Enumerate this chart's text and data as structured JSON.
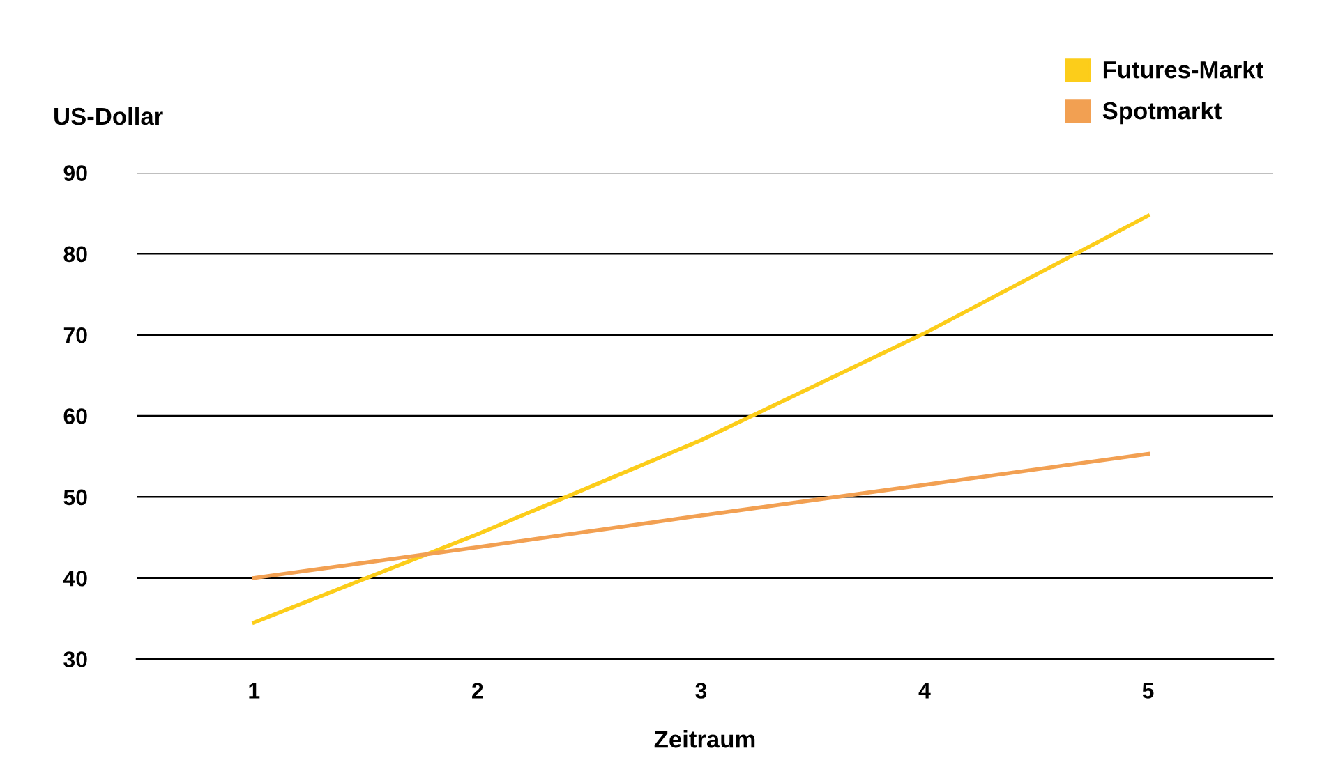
{
  "chart_data": {
    "type": "line",
    "xlabel": "Zeitraum",
    "ylabel": "US-Dollar",
    "categories": [
      "1",
      "2",
      "3",
      "4",
      "5"
    ],
    "series": [
      {
        "name": "Futures-Markt",
        "color": "#fccd1a",
        "values": [
          34.5,
          45.4,
          57.0,
          70.2,
          84.7
        ]
      },
      {
        "name": "Spotmarkt",
        "color": "#f2a052",
        "values": [
          40,
          43.8,
          47.7,
          51.5,
          55.3
        ]
      }
    ],
    "ylim": [
      30,
      90
    ],
    "yticks": [
      30,
      40,
      50,
      60,
      70,
      80,
      90
    ],
    "grid": "y",
    "legend": "top right",
    "marker": "none",
    "line_style": "solid"
  }
}
